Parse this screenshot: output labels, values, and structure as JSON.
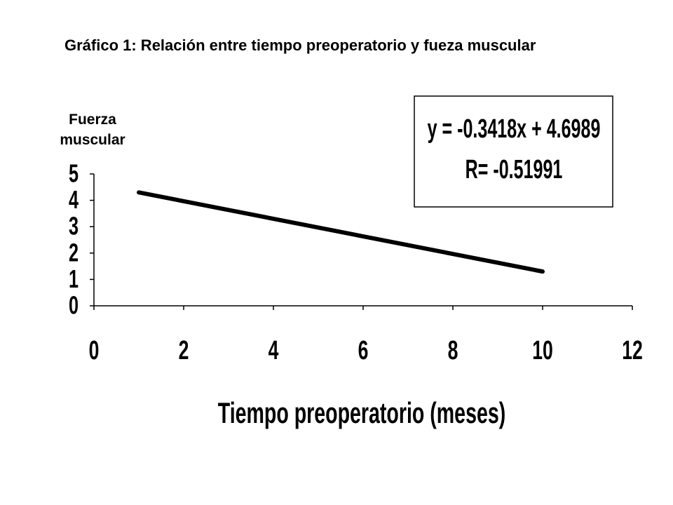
{
  "chart_data": {
    "type": "line",
    "title": "Gráfico 1: Relación entre tiempo preoperatorio y fueza muscular",
    "y_label": "Fuerza muscular",
    "x_label": "Tiempo preoperatorio (meses)",
    "annotations": [
      "y = -0.3418x + 4.6989",
      "R= -0.51991"
    ],
    "x": [
      1,
      10
    ],
    "values": [
      4.3,
      1.3
    ],
    "color": "#000000",
    "xlim": [
      0,
      12
    ],
    "xticks": [
      0,
      2,
      4,
      6,
      8,
      10,
      12
    ],
    "ylim": [
      0,
      5
    ],
    "yticks": [
      0,
      1,
      2,
      3,
      4,
      5
    ]
  }
}
